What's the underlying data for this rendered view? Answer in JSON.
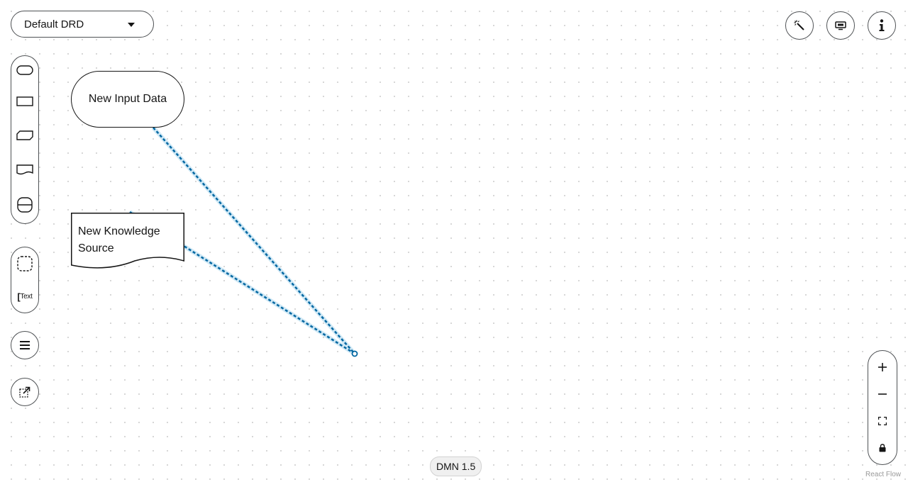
{
  "drd_selector": {
    "value": "Default DRD"
  },
  "palette": {
    "nodes": [
      "input-data",
      "decision",
      "bkm",
      "knowledge-source",
      "decision-service"
    ],
    "group_label": "Group",
    "text_annotation_label": "Text"
  },
  "canvas": {
    "nodes": [
      {
        "type": "input-data",
        "label": "New Input Data"
      },
      {
        "type": "knowledge-source",
        "label": "New Knowledge Source"
      }
    ],
    "edge_color": "#0066a1"
  },
  "toolbar_right": {
    "icons": [
      "magic-wand-icon",
      "overlays-icon",
      "info-icon"
    ]
  },
  "zoom_controls": {
    "zoom_in": "+",
    "zoom_out": "−",
    "fit_view": "fit",
    "lock": "lock"
  },
  "footer": {
    "version": "DMN 1.5",
    "attribution": "React Flow"
  }
}
